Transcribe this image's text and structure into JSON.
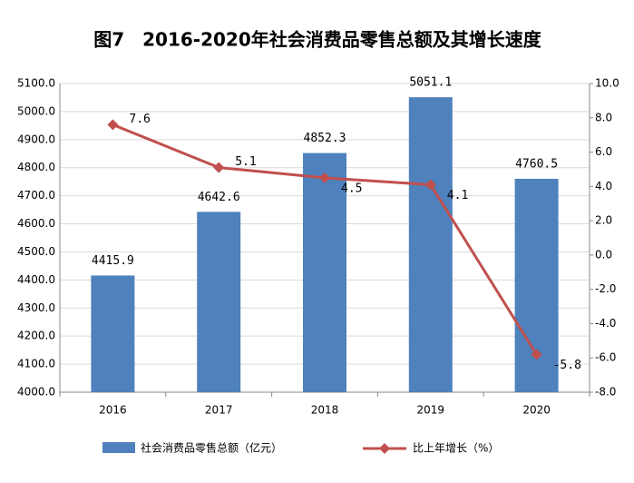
{
  "chart_data": {
    "type": "bar",
    "title": "图7　2016-2020年社会消费品零售总额及其增长速度",
    "categories": [
      "2016",
      "2017",
      "2018",
      "2019",
      "2020"
    ],
    "series": [
      {
        "name": "社会消费品零售总额（亿元）",
        "color": "#4f81bd",
        "values": [
          4415.9,
          4642.6,
          4852.3,
          5051.1,
          4760.5
        ]
      },
      {
        "name": "比上年增长（%）",
        "color": "#c0504d",
        "type": "line",
        "axis": "y2",
        "values": [
          7.6,
          5.1,
          4.5,
          4.1,
          -5.8
        ]
      }
    ],
    "ylim": [
      4000,
      5100
    ],
    "yticks": [
      {
        "value": 4000,
        "label": "4000.0"
      },
      {
        "value": 4100,
        "label": "4100.0"
      },
      {
        "value": 4200,
        "label": "4200.0"
      },
      {
        "value": 4300,
        "label": "4300.0"
      },
      {
        "value": 4400,
        "label": "4400.0"
      },
      {
        "value": 4500,
        "label": "4500.0"
      },
      {
        "value": 4600,
        "label": "4600.0"
      },
      {
        "value": 4700,
        "label": "4700.0"
      },
      {
        "value": 4800,
        "label": "4800.0"
      },
      {
        "value": 4900,
        "label": "4900.0"
      },
      {
        "value": 5000,
        "label": "5000.0"
      },
      {
        "value": 5100,
        "label": "5100.0"
      }
    ],
    "y2lim": [
      -8,
      10
    ],
    "y2ticks": [
      {
        "value": -8,
        "label": "-8.0"
      },
      {
        "value": -6,
        "label": "-6.0"
      },
      {
        "value": -4,
        "label": "-4.0"
      },
      {
        "value": -2,
        "label": "-2.0"
      },
      {
        "value": 0,
        "label": "0.0"
      },
      {
        "value": 2,
        "label": "2.0"
      },
      {
        "value": 4,
        "label": "4.0"
      },
      {
        "value": 6,
        "label": "6.0"
      },
      {
        "value": 8,
        "label": "8.0"
      },
      {
        "value": 10,
        "label": "10.0"
      }
    ],
    "grid": true
  }
}
